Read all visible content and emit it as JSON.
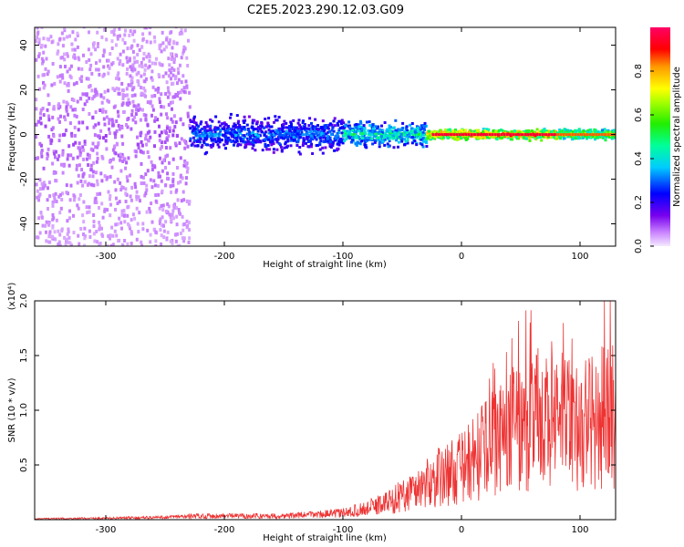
{
  "title": "C2E5.2023.290.12.03.G09",
  "colors": {
    "snr_line": "#ee3333",
    "background": "#ffffff",
    "axis": "#000000"
  },
  "chart_data": [
    {
      "type": "heatmap",
      "xlabel": "Height of straight line (km)",
      "ylabel": "Frequency (Hz)",
      "xlim": [
        -360,
        130
      ],
      "ylim": [
        -50,
        48
      ],
      "x_ticks": [
        -300,
        -200,
        -100,
        0,
        100
      ],
      "y_ticks": [
        -40,
        -20,
        0,
        20,
        40
      ],
      "colorbar": {
        "label": "Normalized spectral amplitude",
        "range": [
          0,
          1
        ],
        "ticks": [
          0.0,
          0.2,
          0.4,
          0.6,
          0.8
        ],
        "colormap": "rainbow"
      },
      "regions": [
        {
          "x_range": [
            -360,
            -230
          ],
          "freq_spread_hz": 50,
          "amplitude": 0.1
        },
        {
          "x_range": [
            -230,
            -100
          ],
          "freq_spread_hz": 10,
          "amplitude": 0.35
        },
        {
          "x_range": [
            -100,
            -30
          ],
          "freq_spread_hz": 7,
          "amplitude": 0.5
        },
        {
          "x_range": [
            -30,
            80
          ],
          "freq_spread_hz": 3,
          "amplitude": 0.95
        },
        {
          "x_range": [
            80,
            130
          ],
          "freq_spread_hz": 3,
          "amplitude": 0.75
        }
      ]
    },
    {
      "type": "line",
      "xlabel": "Height of straight line (km)",
      "ylabel": "SNR (10 * v/v)",
      "y_multiplier": "(x10⁴)",
      "xlim": [
        -360,
        130
      ],
      "ylim": [
        0,
        2.0
      ],
      "x_ticks": [
        -300,
        -200,
        -100,
        0,
        100
      ],
      "y_ticks": [
        0.5,
        1.0,
        1.5,
        2.0
      ],
      "envelope": {
        "x": [
          -360,
          -300,
          -250,
          -220,
          -200,
          -150,
          -100,
          -80,
          -60,
          -40,
          -20,
          0,
          20,
          40,
          60,
          80,
          100,
          120,
          130
        ],
        "y": [
          0.01,
          0.015,
          0.025,
          0.04,
          0.04,
          0.04,
          0.07,
          0.12,
          0.2,
          0.32,
          0.45,
          0.55,
          0.75,
          0.95,
          1.05,
          1.05,
          1.0,
          1.1,
          1.1
        ]
      }
    }
  ]
}
